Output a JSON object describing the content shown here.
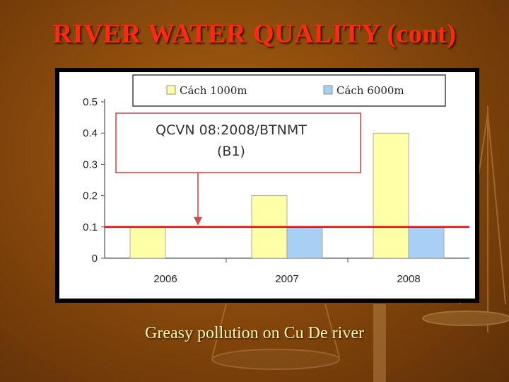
{
  "slide": {
    "title": "RIVER WATER QUALITY (cont)",
    "caption": "Greasy pollution on Cu De river"
  },
  "chart_data": {
    "type": "bar",
    "categories": [
      "2006",
      "2007",
      "2008"
    ],
    "series": [
      {
        "name": "Cách 1000m",
        "color": "#ffffa8",
        "values": [
          0.1,
          0.2,
          0.4
        ]
      },
      {
        "name": "Cách 6000m",
        "color": "#a8d0f4",
        "values": [
          null,
          0.1,
          0.1
        ]
      }
    ],
    "y_ticks": [
      "0",
      "0.1",
      "0.2",
      "0.3",
      "0.4",
      "0.5"
    ],
    "ylim": [
      0,
      0.5
    ],
    "grid": false,
    "legend_position": "top",
    "reference_line": {
      "value": 0.1,
      "color": "#e01010"
    },
    "annotation": {
      "line1": "QCVN 08:2008/BTNMT",
      "line2": "(B1)"
    }
  }
}
